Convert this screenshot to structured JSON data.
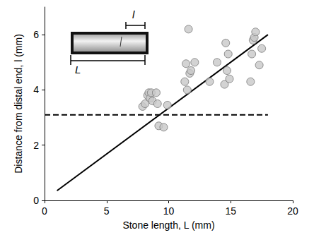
{
  "chart_data": {
    "type": "scatter",
    "x_label": "Stone length, L (mm)",
    "y_label": "Distance from distal end, l (mm)",
    "annotations": [
      "l",
      "L"
    ],
    "xlim": [
      0,
      20
    ],
    "xticks": [
      0,
      5,
      10,
      15,
      20
    ],
    "ylim": [
      0,
      7
    ],
    "yticks": [
      0,
      2,
      4,
      6
    ],
    "grid": false,
    "series": [
      {
        "type": "scatter",
        "color": "#c8c8c8",
        "marker": "circle",
        "x": [
          7.9,
          8.1,
          8.3,
          8.4,
          8.5,
          8.6,
          8.7,
          9.0,
          9.1,
          9.2,
          9.6,
          9.9,
          11.3,
          11.4,
          11.5,
          11.6,
          11.7,
          11.8,
          12.1,
          13.3,
          13.9,
          14.5,
          14.6,
          14.7,
          14.8,
          14.9,
          16.6,
          16.7,
          16.8,
          16.9,
          17.0,
          17.3,
          17.5
        ],
        "values": [
          3.4,
          3.5,
          3.8,
          3.9,
          3.7,
          3.9,
          3.6,
          3.9,
          3.5,
          2.7,
          2.65,
          3.45,
          4.3,
          4.95,
          4.0,
          6.2,
          4.6,
          4.7,
          5.0,
          4.3,
          5.0,
          4.2,
          5.7,
          4.7,
          5.3,
          4.4,
          4.3,
          5.3,
          5.8,
          5.9,
          6.1,
          4.9,
          5.5
        ]
      },
      {
        "type": "line",
        "color": "#000000",
        "line_style": "solid",
        "x": [
          1,
          18
        ],
        "values": [
          0.35,
          6.0
        ]
      },
      {
        "type": "line",
        "color": "#000000",
        "line_style": "dashed",
        "x": [
          0,
          18
        ],
        "values": [
          3.1,
          3.1
        ]
      }
    ]
  }
}
